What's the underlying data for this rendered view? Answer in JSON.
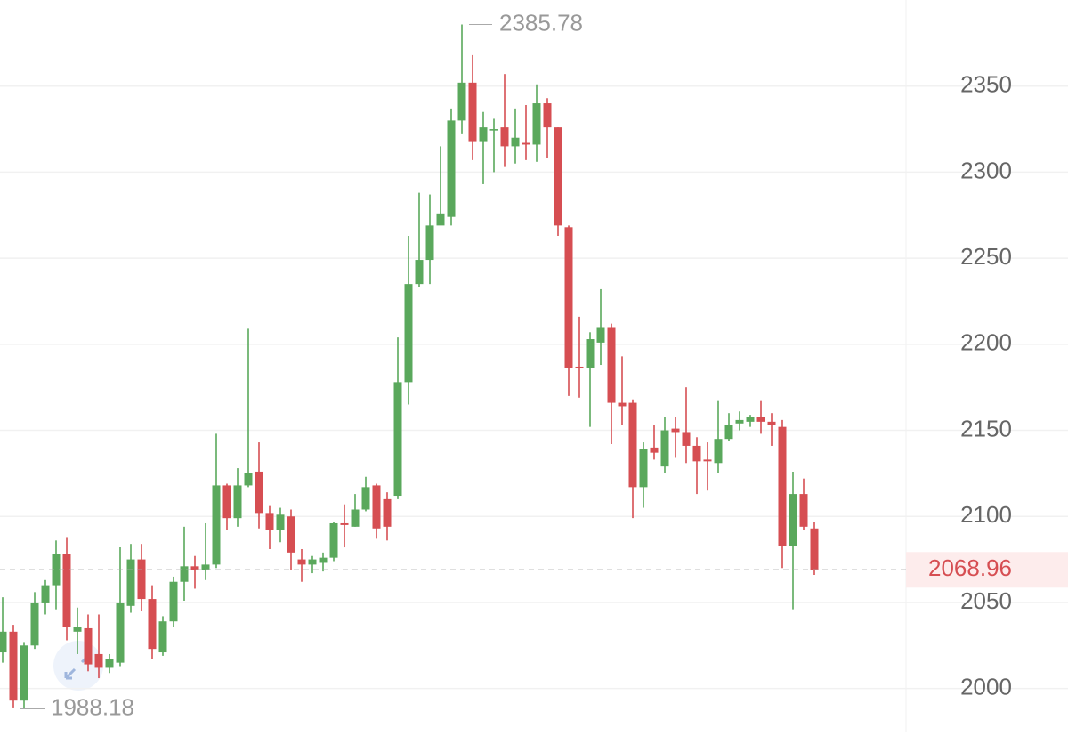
{
  "chart_data": {
    "type": "candlestick",
    "open": [
      2021,
      2033,
      1993,
      2025,
      2050,
      2060,
      2078,
      2033,
      2035,
      2020,
      2012,
      2015,
      2048,
      2075,
      2052,
      2021,
      2039,
      2062,
      2071,
      2069,
      2072,
      2118,
      2099,
      2118,
      2126,
      2102,
      2092,
      2100,
      2075,
      2072,
      2073,
      2076,
      2096,
      2094,
      2104,
      2118,
      2110,
      2112,
      2178,
      2235,
      2249,
      2269,
      2274,
      2330,
      2352,
      2318,
      2325,
      2326,
      2315,
      2317,
      2316,
      2340,
      2326,
      2268,
      2187,
      2186,
      2201,
      2210,
      2166,
      2166,
      2117,
      2140,
      2129,
      2151,
      2149,
      2141,
      2133,
      2131,
      2145,
      2154,
      2155,
      2158,
      2155,
      2152,
      2083,
      2113,
      2093
    ],
    "high": [
      2053,
      2037,
      2027,
      2056,
      2063,
      2086,
      2088,
      2047,
      2043,
      2043,
      2020,
      2082,
      2084,
      2084,
      2060,
      2042,
      2065,
      2094,
      2077,
      2096,
      2148,
      2119,
      2128,
      2209,
      2143,
      2106,
      2105,
      2104,
      2081,
      2077,
      2079,
      2097,
      2107,
      2113,
      2123,
      2119,
      2114,
      2204,
      2263,
      2288,
      2287,
      2315,
      2337,
      2385.78,
      2368,
      2335,
      2331,
      2357,
      2337,
      2339,
      2351,
      2343,
      2326,
      2269,
      2216,
      2207,
      2232,
      2212,
      2193,
      2168,
      2143,
      2153,
      2158,
      2158,
      2175,
      2146,
      2143,
      2167,
      2160,
      2161,
      2159,
      2167,
      2160,
      2156,
      2126,
      2122,
      2097
    ],
    "low": [
      2015,
      1989,
      1988.18,
      2023,
      2043,
      2046,
      2028,
      2020,
      2010,
      2006,
      2009,
      2013,
      2044,
      2045,
      2017,
      2019,
      2036,
      2051,
      2058,
      2063,
      2070,
      2092,
      2094,
      2117,
      2093,
      2081,
      2085,
      2069,
      2062,
      2067,
      2068,
      2074,
      2082,
      2094,
      2103,
      2087,
      2086,
      2110,
      2165,
      2233,
      2235,
      2270,
      2269,
      2322,
      2307,
      2293,
      2300,
      2303,
      2305,
      2307,
      2306,
      2308,
      2263,
      2170,
      2169,
      2152,
      2188,
      2142,
      2153,
      2099,
      2105,
      2133,
      2125,
      2134,
      2131,
      2113,
      2115,
      2125,
      2144,
      2150,
      2152,
      2148,
      2141,
      2070,
      2046,
      2092,
      2066
    ],
    "close": [
      2033,
      1993,
      2025,
      2050,
      2060,
      2078,
      2036,
      2036,
      2014,
      2012,
      2017,
      2050,
      2075,
      2052,
      2023,
      2039,
      2062,
      2071,
      2069,
      2072,
      2118,
      2099,
      2118,
      2125,
      2102,
      2092,
      2101,
      2079,
      2072,
      2075,
      2076,
      2096,
      2095,
      2104,
      2117,
      2093,
      2094,
      2178,
      2235,
      2249,
      2269,
      2276,
      2330,
      2352,
      2318,
      2326,
      2325,
      2315,
      2320,
      2316,
      2340,
      2326,
      2269,
      2186,
      2186,
      2203,
      2210,
      2166,
      2164,
      2117,
      2139,
      2137,
      2150,
      2149,
      2141,
      2132,
      2132,
      2145,
      2153,
      2156,
      2158,
      2155,
      2153,
      2083,
      2113,
      2094,
      2068.96
    ],
    "up_color": "#5aa85c",
    "down_color": "#d64e52",
    "ylim": [
      1975,
      2400
    ],
    "yticks": [
      2000,
      2050,
      2100,
      2150,
      2200,
      2250,
      2300,
      2350
    ],
    "grid": true,
    "max_label": 2385.78,
    "min_label": 1988.18,
    "last_price": 2068.96
  }
}
